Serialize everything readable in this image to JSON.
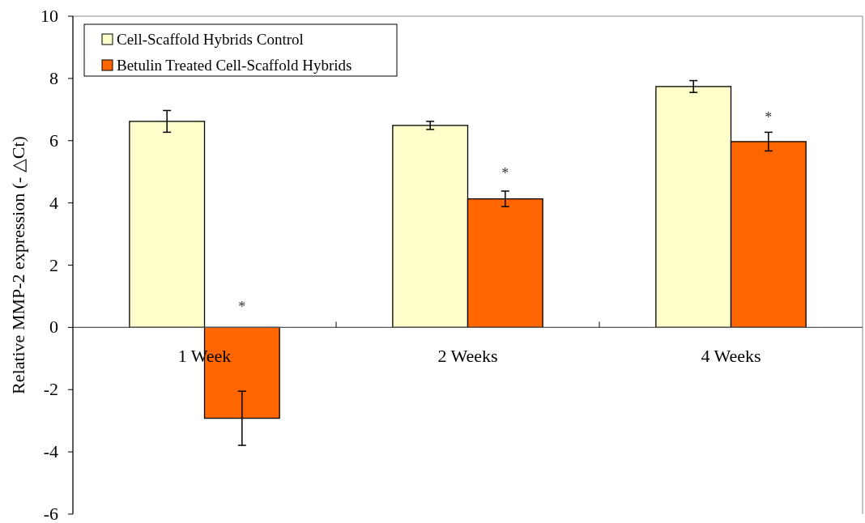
{
  "chart_data": {
    "type": "bar",
    "ylabel": "Relative MMP-2 expression (- △Ct)",
    "categories": [
      "1 Week",
      "2 Weeks",
      "4 Weeks"
    ],
    "series": [
      {
        "name": "Cell-Scaffold Hybrids Control",
        "color": "#ffffcc",
        "values": [
          6.62,
          6.49,
          7.74
        ],
        "errors": [
          0.35,
          0.13,
          0.19
        ]
      },
      {
        "name": "Betulin Treated Cell-Scaffold Hybrids",
        "color": "#ff6600",
        "values": [
          -2.92,
          4.13,
          5.97
        ],
        "errors": [
          0.87,
          0.25,
          0.3
        ]
      }
    ],
    "ylim": [
      -6,
      10
    ],
    "yticks": [
      -6,
      -4,
      -2,
      0,
      2,
      4,
      6,
      8,
      10
    ],
    "grid": false,
    "legend": "top left",
    "annotations": [
      {
        "text": "*",
        "x": "1 Week",
        "y": 0.7
      },
      {
        "text": "*",
        "x": "2 Weeks",
        "y": 5
      },
      {
        "text": "*",
        "x": "4 Weeks",
        "y": 6.8
      }
    ]
  }
}
